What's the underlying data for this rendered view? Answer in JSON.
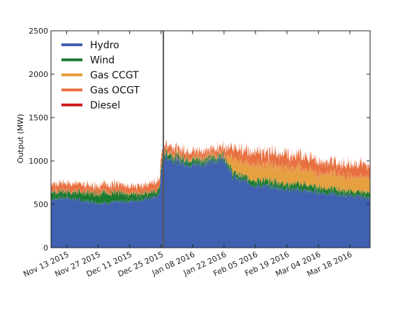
{
  "chart_data": {
    "type": "area",
    "title": "",
    "xlabel": "",
    "ylabel": "Output (MW)",
    "ylim": [
      0,
      2500
    ],
    "yticks": [
      0,
      500,
      1000,
      1500,
      2000,
      2500
    ],
    "xlim": [
      "2015-11-06",
      "2016-03-27"
    ],
    "xticks": [
      {
        "date": "2015-11-13",
        "label": "Nov 13 2015"
      },
      {
        "date": "2015-11-27",
        "label": "Nov 27 2015"
      },
      {
        "date": "2015-12-11",
        "label": "Dec 11 2015"
      },
      {
        "date": "2015-12-25",
        "label": "Dec 25 2015"
      },
      {
        "date": "2016-01-08",
        "label": "Jan 08 2016"
      },
      {
        "date": "2016-01-22",
        "label": "Jan 22 2016"
      },
      {
        "date": "2016-02-05",
        "label": "Feb 05 2016"
      },
      {
        "date": "2016-02-19",
        "label": "Feb 19 2016"
      },
      {
        "date": "2016-03-04",
        "label": "Mar 04 2016"
      },
      {
        "date": "2016-03-18",
        "label": "Mar 18 2016"
      }
    ],
    "vline": "2015-12-26",
    "stacked": true,
    "legend_position": "top-left",
    "grid": false,
    "x": [
      "2015-11-06",
      "2015-11-13",
      "2015-11-20",
      "2015-11-27",
      "2015-12-04",
      "2015-12-11",
      "2015-12-18",
      "2015-12-24",
      "2015-12-26",
      "2016-01-01",
      "2016-01-08",
      "2016-01-15",
      "2016-01-22",
      "2016-01-26",
      "2016-02-05",
      "2016-02-12",
      "2016-02-19",
      "2016-02-26",
      "2016-03-04",
      "2016-03-11",
      "2016-03-18",
      "2016-03-27"
    ],
    "series": [
      {
        "name": "Hydro",
        "color": "#4060b0",
        "values": [
          560,
          580,
          540,
          520,
          520,
          540,
          560,
          600,
          1060,
          1000,
          960,
          980,
          1040,
          820,
          720,
          700,
          680,
          660,
          640,
          620,
          600,
          580
        ]
      },
      {
        "name": "Wind",
        "color": "#1a7a30",
        "values": [
          80,
          70,
          90,
          120,
          110,
          80,
          70,
          60,
          60,
          50,
          60,
          50,
          40,
          50,
          60,
          70,
          60,
          70,
          60,
          60,
          50,
          60
        ]
      },
      {
        "name": "Gas CCGT",
        "color": "#e6a040",
        "values": [
          10,
          10,
          10,
          10,
          10,
          10,
          10,
          10,
          20,
          20,
          20,
          20,
          20,
          150,
          170,
          180,
          190,
          180,
          160,
          170,
          170,
          170
        ]
      },
      {
        "name": "Gas OCGT",
        "color": "#e87040",
        "values": [
          80,
          90,
          80,
          80,
          90,
          80,
          90,
          100,
          80,
          70,
          80,
          70,
          80,
          130,
          150,
          140,
          150,
          140,
          150,
          130,
          140,
          150
        ]
      },
      {
        "name": "Diesel",
        "color": "#d02020",
        "values": [
          0,
          0,
          0,
          0,
          0,
          0,
          0,
          0,
          0,
          0,
          0,
          0,
          0,
          0,
          0,
          0,
          0,
          0,
          0,
          0,
          0,
          0
        ]
      }
    ]
  }
}
